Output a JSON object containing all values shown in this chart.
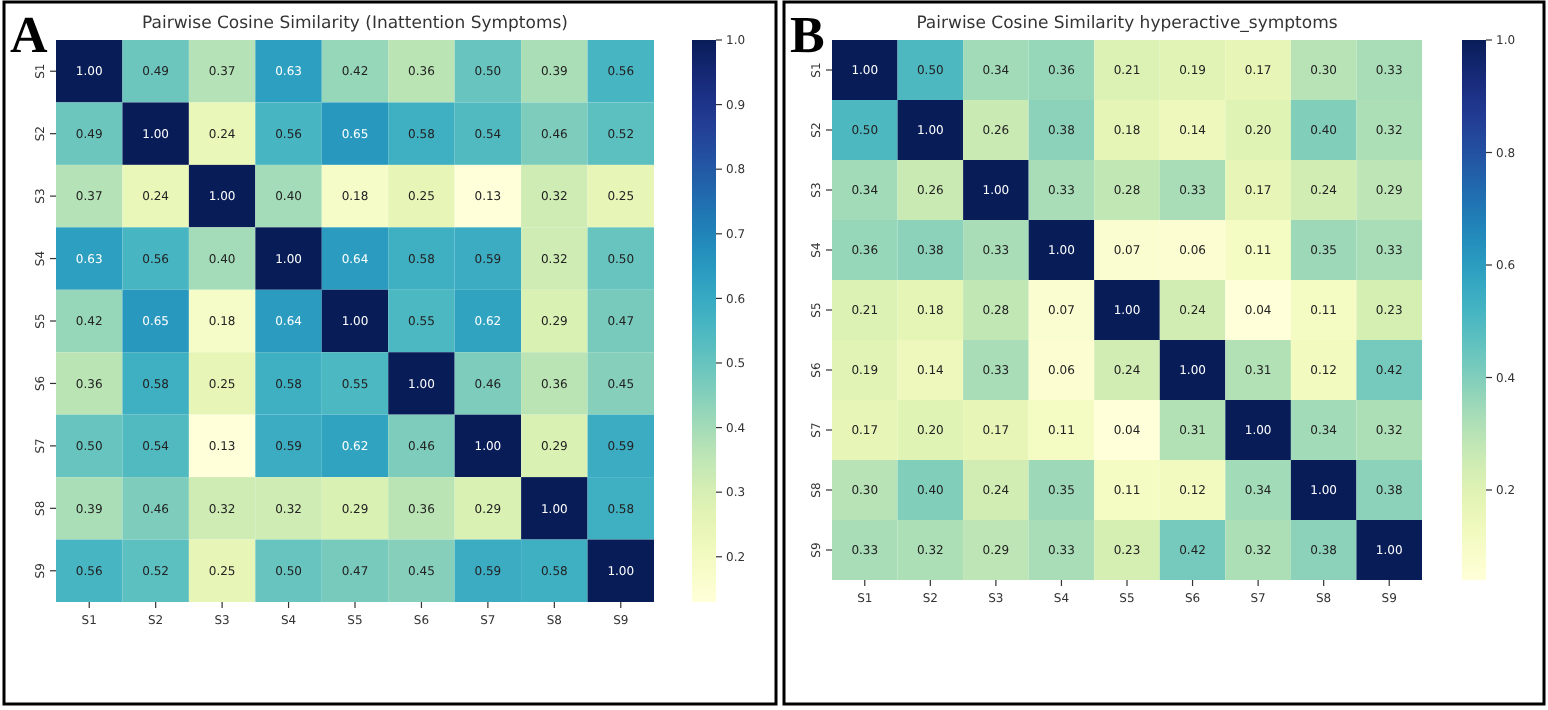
{
  "chart_data": [
    {
      "type": "heatmap",
      "title": "Pairwise Cosine Similarity (Inattention Symptoms)",
      "annotations": [
        "A"
      ],
      "categories": [
        "S1",
        "S2",
        "S3",
        "S4",
        "S5",
        "S6",
        "S7",
        "S8",
        "S9"
      ],
      "y_categories": [
        "S1",
        "S2",
        "S3",
        "S4",
        "S5",
        "S6",
        "S7",
        "S8",
        "S9"
      ],
      "cells": [
        [
          1.0,
          0.49,
          0.37,
          0.63,
          0.42,
          0.36,
          0.5,
          0.39,
          0.56
        ],
        [
          0.49,
          1.0,
          0.24,
          0.56,
          0.65,
          0.58,
          0.54,
          0.46,
          0.52
        ],
        [
          0.37,
          0.24,
          1.0,
          0.4,
          0.18,
          0.25,
          0.13,
          0.32,
          0.25
        ],
        [
          0.63,
          0.56,
          0.4,
          1.0,
          0.64,
          0.58,
          0.59,
          0.32,
          0.5
        ],
        [
          0.42,
          0.65,
          0.18,
          0.64,
          1.0,
          0.55,
          0.62,
          0.29,
          0.47
        ],
        [
          0.36,
          0.58,
          0.25,
          0.58,
          0.55,
          1.0,
          0.46,
          0.36,
          0.45
        ],
        [
          0.5,
          0.54,
          0.13,
          0.59,
          0.62,
          0.46,
          1.0,
          0.29,
          0.59
        ],
        [
          0.39,
          0.46,
          0.32,
          0.32,
          0.29,
          0.36,
          0.29,
          1.0,
          0.58
        ],
        [
          0.56,
          0.52,
          0.25,
          0.5,
          0.47,
          0.45,
          0.59,
          0.58,
          1.0
        ]
      ],
      "cell_labels": [
        [
          "1.00",
          "0.49",
          "0.37",
          "0.63",
          "0.42",
          "0.36",
          "0.50",
          "0.39",
          "0.56"
        ],
        [
          "0.49",
          "1.00",
          "0.24",
          "0.56",
          "0.65",
          "0.58",
          "0.54",
          "0.46",
          "0.52"
        ],
        [
          "0.37",
          "0.24",
          "1.00",
          "0.40",
          "0.18",
          "0.25",
          "0.13",
          "0.32",
          "0.25"
        ],
        [
          "0.63",
          "0.56",
          "0.40",
          "1.00",
          "0.64",
          "0.58",
          "0.59",
          "0.32",
          "0.50"
        ],
        [
          "0.42",
          "0.65",
          "0.18",
          "0.64",
          "1.00",
          "0.55",
          "0.62",
          "0.29",
          "0.47"
        ],
        [
          "0.36",
          "0.58",
          "0.25",
          "0.58",
          "0.55",
          "1.00",
          "0.46",
          "0.36",
          "0.45"
        ],
        [
          "0.50",
          "0.54",
          "0.13",
          "0.59",
          "0.62",
          "0.46",
          "1.00",
          "0.29",
          "0.59"
        ],
        [
          "0.39",
          "0.46",
          "0.32",
          "0.32",
          "0.29",
          "0.36",
          "0.29",
          "1.00",
          "0.58"
        ],
        [
          "0.56",
          "0.52",
          "0.25",
          "0.50",
          "0.47",
          "0.45",
          "0.59",
          "0.58",
          "1.00"
        ]
      ],
      "clim": [
        0.13,
        1.0
      ],
      "cticks": [
        {
          "value": 0.2,
          "label": "0.2"
        },
        {
          "value": 0.3,
          "label": "0.3"
        },
        {
          "value": 0.4,
          "label": "0.4"
        },
        {
          "value": 0.5,
          "label": "0.5"
        },
        {
          "value": 0.6,
          "label": "0.6"
        },
        {
          "value": 0.7,
          "label": "0.7"
        },
        {
          "value": 0.8,
          "label": "0.8"
        },
        {
          "value": 0.9,
          "label": "0.9"
        },
        {
          "value": 1.0,
          "label": "1.0"
        }
      ],
      "data_labels": true
    },
    {
      "type": "heatmap",
      "title": "Pairwise Cosine Similarity hyperactive_symptoms",
      "annotations": [
        "B"
      ],
      "categories": [
        "S1",
        "S2",
        "S3",
        "S4",
        "S5",
        "S6",
        "S7",
        "S8",
        "S9"
      ],
      "y_categories": [
        "S1",
        "S2",
        "S3",
        "S4",
        "S5",
        "S6",
        "S7",
        "S8",
        "S9"
      ],
      "cells": [
        [
          1.0,
          0.5,
          0.34,
          0.36,
          0.21,
          0.19,
          0.17,
          0.3,
          0.33
        ],
        [
          0.5,
          1.0,
          0.26,
          0.38,
          0.18,
          0.14,
          0.2,
          0.4,
          0.32
        ],
        [
          0.34,
          0.26,
          1.0,
          0.33,
          0.28,
          0.33,
          0.17,
          0.24,
          0.29
        ],
        [
          0.36,
          0.38,
          0.33,
          1.0,
          0.07,
          0.06,
          0.11,
          0.35,
          0.33
        ],
        [
          0.21,
          0.18,
          0.28,
          0.07,
          1.0,
          0.24,
          0.04,
          0.11,
          0.23
        ],
        [
          0.19,
          0.14,
          0.33,
          0.06,
          0.24,
          1.0,
          0.31,
          0.12,
          0.42
        ],
        [
          0.17,
          0.2,
          0.17,
          0.11,
          0.04,
          0.31,
          1.0,
          0.34,
          0.32
        ],
        [
          0.3,
          0.4,
          0.24,
          0.35,
          0.11,
          0.12,
          0.34,
          1.0,
          0.38
        ],
        [
          0.33,
          0.32,
          0.29,
          0.33,
          0.23,
          0.42,
          0.32,
          0.38,
          1.0
        ]
      ],
      "cell_labels": [
        [
          "1.00",
          "0.50",
          "0.34",
          "0.36",
          "0.21",
          "0.19",
          "0.17",
          "0.30",
          "0.33"
        ],
        [
          "0.50",
          "1.00",
          "0.26",
          "0.38",
          "0.18",
          "0.14",
          "0.20",
          "0.40",
          "0.32"
        ],
        [
          "0.34",
          "0.26",
          "1.00",
          "0.33",
          "0.28",
          "0.33",
          "0.17",
          "0.24",
          "0.29"
        ],
        [
          "0.36",
          "0.38",
          "0.33",
          "1.00",
          "0.07",
          "0.06",
          "0.11",
          "0.35",
          "0.33"
        ],
        [
          "0.21",
          "0.18",
          "0.28",
          "0.07",
          "1.00",
          "0.24",
          "0.04",
          "0.11",
          "0.23"
        ],
        [
          "0.19",
          "0.14",
          "0.33",
          "0.06",
          "0.24",
          "1.00",
          "0.31",
          "0.12",
          "0.42"
        ],
        [
          "0.17",
          "0.20",
          "0.17",
          "0.11",
          "0.04",
          "0.31",
          "1.00",
          "0.34",
          "0.32"
        ],
        [
          "0.30",
          "0.40",
          "0.24",
          "0.35",
          "0.11",
          "0.12",
          "0.34",
          "1.00",
          "0.38"
        ],
        [
          "0.33",
          "0.32",
          "0.29",
          "0.33",
          "0.23",
          "0.42",
          "0.32",
          "0.38",
          "1.00"
        ]
      ],
      "clim": [
        0.04,
        1.0
      ],
      "cticks": [
        {
          "value": 0.2,
          "label": "0.2"
        },
        {
          "value": 0.4,
          "label": "0.4"
        },
        {
          "value": 0.6,
          "label": "0.6"
        },
        {
          "value": 0.8,
          "label": "0.8"
        },
        {
          "value": 1.0,
          "label": "1.0"
        }
      ],
      "data_labels": true
    }
  ]
}
